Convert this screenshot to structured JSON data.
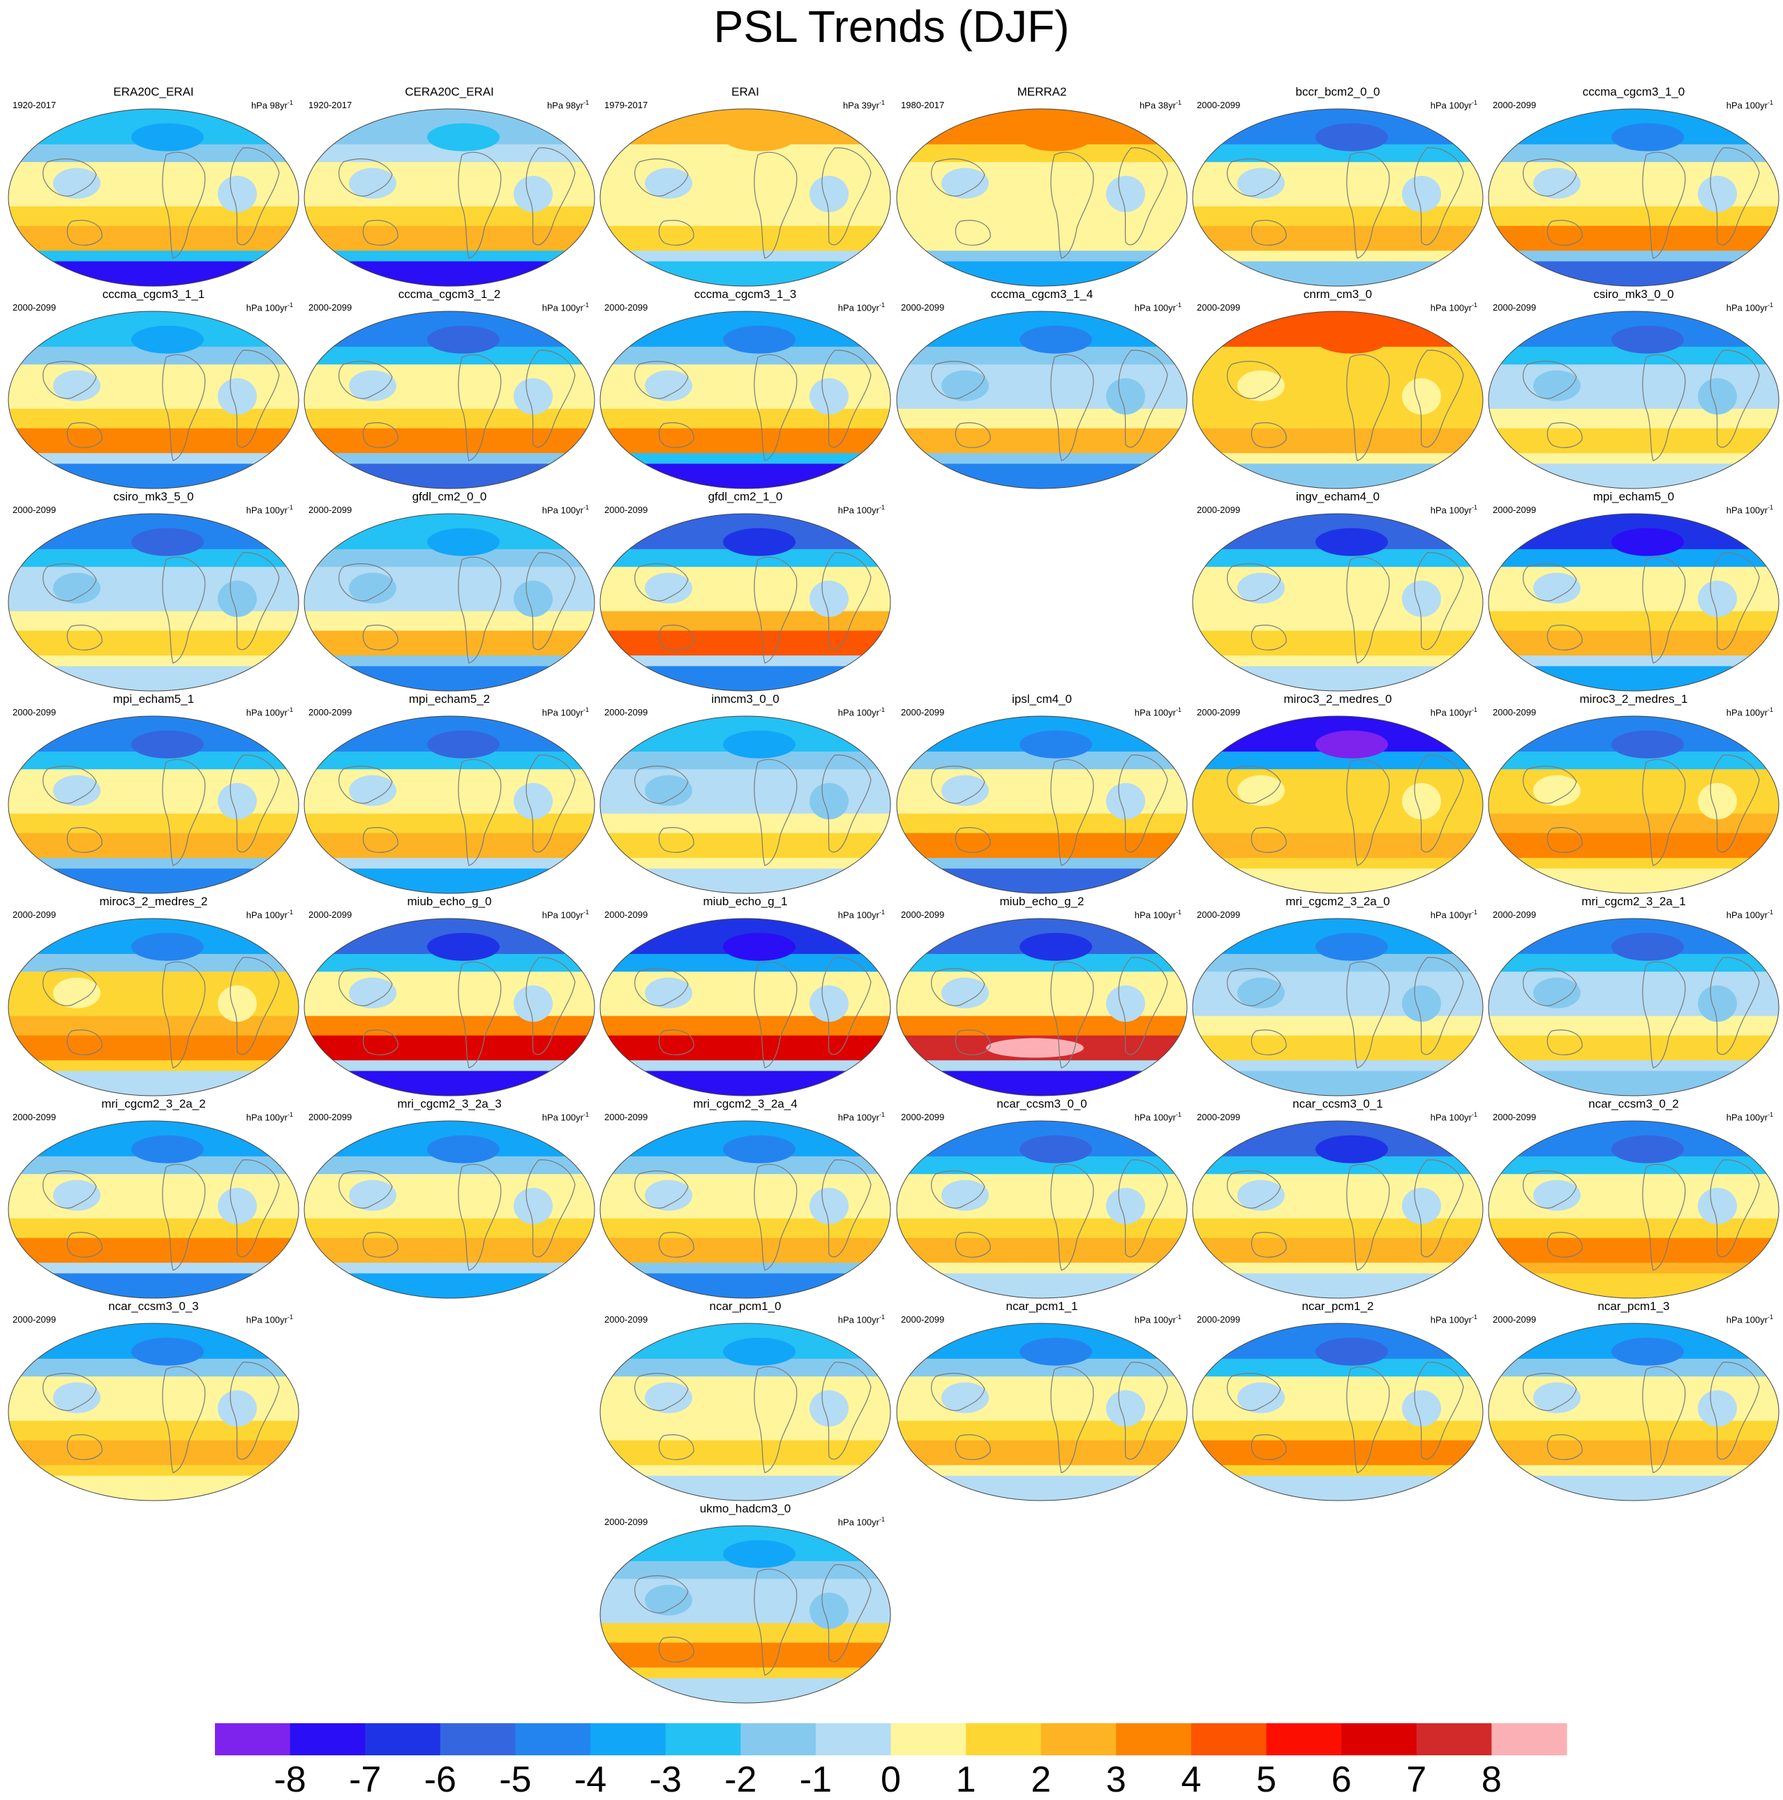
{
  "title": "PSL Trends (DJF)",
  "colorbar": {
    "colors": [
      "#7e22ee",
      "#2a0ef5",
      "#1e33e6",
      "#3466e0",
      "#2384f0",
      "#12a6f8",
      "#24c1f4",
      "#86c9ef",
      "#b4dcf4",
      "#fff59c",
      "#fed633",
      "#fdb324",
      "#fd8400",
      "#fd5400",
      "#fd0f00",
      "#dc0000",
      "#d2292a",
      "#fbb0b6"
    ],
    "labels": [
      "-8",
      "-7",
      "-6",
      "-5",
      "-4",
      "-3",
      "-2",
      "-1",
      "0",
      "1",
      "2",
      "3",
      "4",
      "5",
      "6",
      "7",
      "8"
    ]
  },
  "panels": [
    {
      "name": "ERA20C_ERAI",
      "period": "1920-2017",
      "units": "hPa 98yr",
      "sup": "-1",
      "col": 0,
      "row": 0,
      "south": 2.5,
      "polar": -8,
      "tropic": 0.5,
      "north": -3
    },
    {
      "name": "CERA20C_ERAI",
      "period": "1920-2017",
      "units": "hPa 98yr",
      "sup": "-1",
      "col": 1,
      "row": 0,
      "south": 2.5,
      "polar": -8,
      "tropic": 0.5,
      "north": -2
    },
    {
      "name": "ERAI",
      "period": "1979-2017",
      "units": "hPa 39yr",
      "sup": "-1",
      "col": 2,
      "row": 0,
      "south": 1,
      "polar": -3,
      "tropic": 0.5,
      "north": 2
    },
    {
      "name": "MERRA2",
      "period": "1980-2017",
      "units": "hPa 38yr",
      "sup": "-1",
      "col": 3,
      "row": 0,
      "south": 0.5,
      "polar": -4,
      "tropic": 0.5,
      "north": 3
    },
    {
      "name": "bccr_bcm2_0_0",
      "period": "2000-2099",
      "units": "hPa 100yr",
      "sup": "-1",
      "col": 4,
      "row": 0,
      "south": 2,
      "polar": -2,
      "tropic": 0.5,
      "north": -5
    },
    {
      "name": "cccma_cgcm3_1_0",
      "period": "2000-2099",
      "units": "hPa 100yr",
      "sup": "-1",
      "col": 5,
      "row": 0,
      "south": 3,
      "polar": -6,
      "tropic": 0.5,
      "north": -4
    },
    {
      "name": "cccma_cgcm3_1_1",
      "period": "2000-2099",
      "units": "hPa 100yr",
      "sup": "-1",
      "col": 0,
      "row": 1,
      "south": 3,
      "polar": -5,
      "tropic": 0.5,
      "north": -3
    },
    {
      "name": "cccma_cgcm3_1_2",
      "period": "2000-2099",
      "units": "hPa 100yr",
      "sup": "-1",
      "col": 1,
      "row": 1,
      "south": 3,
      "polar": -6,
      "tropic": 0.5,
      "north": -5
    },
    {
      "name": "cccma_cgcm3_1_3",
      "period": "2000-2099",
      "units": "hPa 100yr",
      "sup": "-1",
      "col": 2,
      "row": 1,
      "south": 3,
      "polar": -8,
      "tropic": 0.5,
      "north": -4
    },
    {
      "name": "cccma_cgcm3_1_4",
      "period": "2000-2099",
      "units": "hPa 100yr",
      "sup": "-1",
      "col": 3,
      "row": 1,
      "south": 2,
      "polar": -5,
      "tropic": -0.5,
      "north": -4
    },
    {
      "name": "cnrm_cm3_0",
      "period": "2000-2099",
      "units": "hPa 100yr",
      "sup": "-1",
      "col": 4,
      "row": 1,
      "south": 2,
      "polar": -2,
      "tropic": 1,
      "north": 4
    },
    {
      "name": "csiro_mk3_0_0",
      "period": "2000-2099",
      "units": "hPa 100yr",
      "sup": "-1",
      "col": 5,
      "row": 1,
      "south": 1,
      "polar": -1,
      "tropic": -0.5,
      "north": -5
    },
    {
      "name": "csiro_mk3_5_0",
      "period": "2000-2099",
      "units": "hPa 100yr",
      "sup": "-1",
      "col": 0,
      "row": 2,
      "south": 1,
      "polar": -1,
      "tropic": -0.5,
      "north": -5
    },
    {
      "name": "gfdl_cm2_0_0",
      "period": "2000-2099",
      "units": "hPa 100yr",
      "sup": "-1",
      "col": 1,
      "row": 2,
      "south": 2,
      "polar": -5,
      "tropic": -0.5,
      "north": -3
    },
    {
      "name": "gfdl_cm2_1_0",
      "period": "2000-2099",
      "units": "hPa 100yr",
      "sup": "-1",
      "col": 2,
      "row": 2,
      "south": 4,
      "polar": -5,
      "tropic": 0.5,
      "north": -6
    },
    {
      "name": "ingv_echam4_0",
      "period": "2000-2099",
      "units": "hPa 100yr",
      "sup": "-1",
      "col": 4,
      "row": 2,
      "south": 1,
      "polar": -1,
      "tropic": 0.5,
      "north": -6
    },
    {
      "name": "mpi_echam5_0",
      "period": "2000-2099",
      "units": "hPa 100yr",
      "sup": "-1",
      "col": 5,
      "row": 2,
      "south": 2,
      "polar": -4,
      "tropic": 0.5,
      "north": -7
    },
    {
      "name": "mpi_echam5_1",
      "period": "2000-2099",
      "units": "hPa 100yr",
      "sup": "-1",
      "col": 0,
      "row": 3,
      "south": 2,
      "polar": -5,
      "tropic": 0.5,
      "north": -5
    },
    {
      "name": "mpi_echam5_2",
      "period": "2000-2099",
      "units": "hPa 100yr",
      "sup": "-1",
      "col": 1,
      "row": 3,
      "south": 2,
      "polar": -4,
      "tropic": 0.5,
      "north": -5
    },
    {
      "name": "inmcm3_0_0",
      "period": "2000-2099",
      "units": "hPa 100yr",
      "sup": "-1",
      "col": 2,
      "row": 3,
      "south": 1,
      "polar": -1,
      "tropic": -0.5,
      "north": -3
    },
    {
      "name": "ipsl_cm4_0",
      "period": "2000-2099",
      "units": "hPa 100yr",
      "sup": "-1",
      "col": 3,
      "row": 3,
      "south": 3,
      "polar": -6,
      "tropic": 0.5,
      "north": -4
    },
    {
      "name": "miroc3_2_medres_0",
      "period": "2000-2099",
      "units": "hPa 100yr",
      "sup": "-1",
      "col": 4,
      "row": 3,
      "south": 2,
      "polar": 0.5,
      "tropic": 1,
      "north": -8
    },
    {
      "name": "miroc3_2_medres_1",
      "period": "2000-2099",
      "units": "hPa 100yr",
      "sup": "-1",
      "col": 5,
      "row": 3,
      "south": 3,
      "polar": 0.5,
      "tropic": 1,
      "north": -5
    },
    {
      "name": "miroc3_2_medres_2",
      "period": "2000-2099",
      "units": "hPa 100yr",
      "sup": "-1",
      "col": 0,
      "row": 4,
      "south": 3,
      "polar": -1,
      "tropic": 1,
      "north": -4
    },
    {
      "name": "miub_echo_g_0",
      "period": "2000-2099",
      "units": "hPa 100yr",
      "sup": "-1",
      "col": 1,
      "row": 4,
      "south": 6,
      "polar": -8,
      "tropic": 0.5,
      "north": -6
    },
    {
      "name": "miub_echo_g_1",
      "period": "2000-2099",
      "units": "hPa 100yr",
      "sup": "-1",
      "col": 2,
      "row": 4,
      "south": 6,
      "polar": -8,
      "tropic": 0.5,
      "north": -7
    },
    {
      "name": "miub_echo_g_2",
      "period": "2000-2099",
      "units": "hPa 100yr",
      "sup": "-1",
      "col": 3,
      "row": 4,
      "south": 7,
      "polar": -8,
      "tropic": 0.5,
      "north": -6
    },
    {
      "name": "mri_cgcm2_3_2a_0",
      "period": "2000-2099",
      "units": "hPa 100yr",
      "sup": "-1",
      "col": 4,
      "row": 4,
      "south": 1,
      "polar": -2,
      "tropic": -0.5,
      "north": -4
    },
    {
      "name": "mri_cgcm2_3_2a_1",
      "period": "2000-2099",
      "units": "hPa 100yr",
      "sup": "-1",
      "col": 5,
      "row": 4,
      "south": 1,
      "polar": -2,
      "tropic": -0.5,
      "north": -5
    },
    {
      "name": "mri_cgcm2_3_2a_2",
      "period": "2000-2099",
      "units": "hPa 100yr",
      "sup": "-1",
      "col": 0,
      "row": 5,
      "south": 3,
      "polar": -5,
      "tropic": 0.5,
      "north": -4
    },
    {
      "name": "mri_cgcm2_3_2a_3",
      "period": "2000-2099",
      "units": "hPa 100yr",
      "sup": "-1",
      "col": 1,
      "row": 5,
      "south": 2,
      "polar": -4,
      "tropic": 0.5,
      "north": -4
    },
    {
      "name": "mri_cgcm2_3_2a_4",
      "period": "2000-2099",
      "units": "hPa 100yr",
      "sup": "-1",
      "col": 2,
      "row": 5,
      "south": 2,
      "polar": -5,
      "tropic": 0.5,
      "north": -4
    },
    {
      "name": "ncar_ccsm3_0_0",
      "period": "2000-2099",
      "units": "hPa 100yr",
      "sup": "-1",
      "col": 3,
      "row": 5,
      "south": 2,
      "polar": -1,
      "tropic": 0.5,
      "north": -5
    },
    {
      "name": "ncar_ccsm3_0_1",
      "period": "2000-2099",
      "units": "hPa 100yr",
      "sup": "-1",
      "col": 4,
      "row": 5,
      "south": 2,
      "polar": -1,
      "tropic": 0.5,
      "north": -6
    },
    {
      "name": "ncar_ccsm3_0_2",
      "period": "2000-2099",
      "units": "hPa 100yr",
      "sup": "-1",
      "col": 5,
      "row": 5,
      "south": 3,
      "polar": 1,
      "tropic": 0.5,
      "north": -5
    },
    {
      "name": "ncar_ccsm3_0_3",
      "period": "2000-2099",
      "units": "hPa 100yr",
      "sup": "-1",
      "col": 0,
      "row": 6,
      "south": 2,
      "polar": 0.5,
      "tropic": 0.5,
      "north": -4
    },
    {
      "name": "ncar_pcm1_0",
      "period": "2000-2099",
      "units": "hPa 100yr",
      "sup": "-1",
      "col": 2,
      "row": 6,
      "south": 1,
      "polar": -1,
      "tropic": 0.5,
      "north": -3
    },
    {
      "name": "ncar_pcm1_1",
      "period": "2000-2099",
      "units": "hPa 100yr",
      "sup": "-1",
      "col": 3,
      "row": 6,
      "south": 2,
      "polar": -1,
      "tropic": 0.5,
      "north": -4
    },
    {
      "name": "ncar_pcm1_2",
      "period": "2000-2099",
      "units": "hPa 100yr",
      "sup": "-1",
      "col": 4,
      "row": 6,
      "south": 3,
      "polar": -1,
      "tropic": 0.5,
      "north": -5
    },
    {
      "name": "ncar_pcm1_3",
      "period": "2000-2099",
      "units": "hPa 100yr",
      "sup": "-1",
      "col": 5,
      "row": 6,
      "south": 2,
      "polar": -1,
      "tropic": 0.5,
      "north": -4
    },
    {
      "name": "ukmo_hadcm3_0",
      "period": "2000-2099",
      "units": "hPa 100yr",
      "sup": "-1",
      "col": 2,
      "row": 7,
      "south": 3,
      "polar": -1,
      "tropic": -0.5,
      "north": -3
    }
  ]
}
